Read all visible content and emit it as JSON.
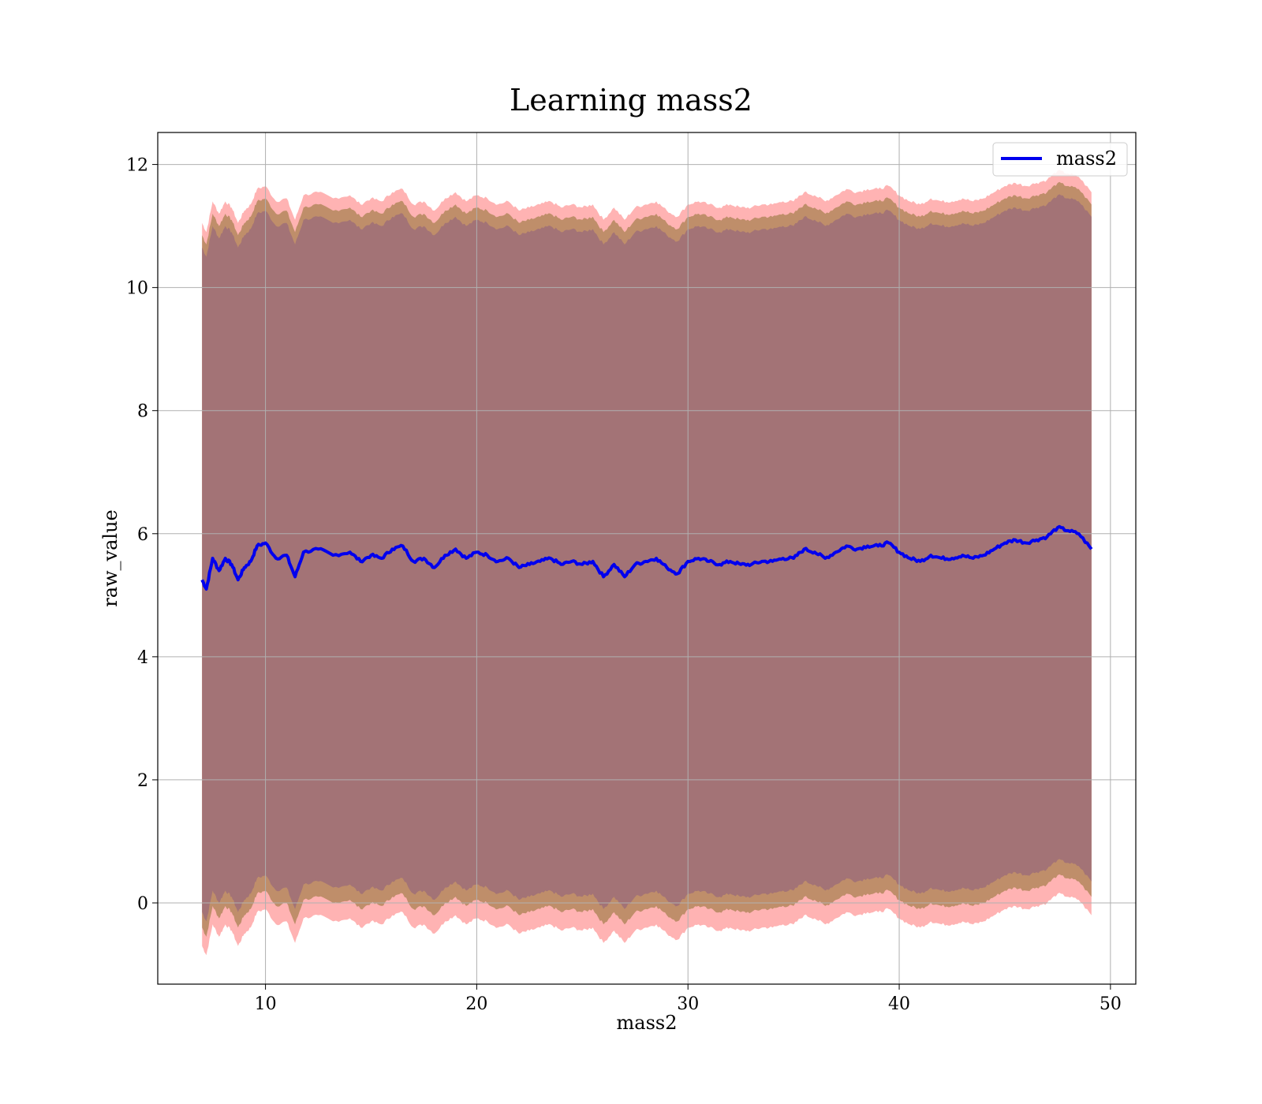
{
  "chart_data": {
    "type": "line",
    "title": "Learning mass2",
    "xlabel": "mass2",
    "ylabel": "raw_value",
    "xlim": [
      4.9,
      51.2
    ],
    "ylim": [
      -1.32,
      12.52
    ],
    "xticks": [
      10,
      20,
      30,
      40,
      50
    ],
    "yticks": [
      0,
      2,
      4,
      6,
      8,
      10,
      12
    ],
    "grid": true,
    "legend": {
      "position": "top-right",
      "entries": [
        "mass2"
      ]
    },
    "colors": {
      "line": "#0000ee",
      "outer_band": "#ff9a9a",
      "mid_band": "#b88a62",
      "inner_band": "#a07078"
    },
    "series": [
      {
        "name": "mass2",
        "x": [
          7.0,
          7.2,
          7.5,
          7.8,
          8.1,
          8.4,
          8.7,
          9.0,
          9.3,
          9.6,
          10.0,
          10.5,
          11.0,
          11.4,
          11.8,
          12.5,
          13.2,
          14.0,
          14.5,
          15.0,
          15.5,
          16.0,
          16.5,
          17.0,
          17.5,
          18.0,
          18.5,
          19.0,
          19.5,
          20.0,
          20.5,
          21.0,
          21.5,
          22.0,
          22.5,
          23.0,
          23.5,
          24.0,
          24.5,
          25.0,
          25.5,
          26.0,
          26.5,
          27.0,
          27.5,
          28.0,
          28.5,
          29.0,
          29.5,
          30.0,
          30.5,
          31.0,
          31.5,
          32.0,
          32.5,
          33.0,
          33.5,
          34.0,
          34.5,
          35.0,
          35.5,
          36.0,
          36.5,
          37.0,
          37.5,
          38.0,
          38.5,
          39.0,
          39.5,
          40.0,
          40.5,
          41.0,
          41.5,
          42.0,
          42.5,
          43.0,
          43.5,
          44.0,
          44.5,
          45.0,
          45.5,
          46.0,
          46.5,
          47.0,
          47.5,
          48.0,
          48.5,
          49.1
        ],
        "y": [
          5.25,
          5.1,
          5.6,
          5.4,
          5.6,
          5.5,
          5.25,
          5.45,
          5.55,
          5.8,
          5.85,
          5.6,
          5.65,
          5.3,
          5.7,
          5.75,
          5.65,
          5.7,
          5.55,
          5.65,
          5.6,
          5.75,
          5.8,
          5.55,
          5.6,
          5.45,
          5.65,
          5.75,
          5.6,
          5.7,
          5.65,
          5.55,
          5.6,
          5.45,
          5.5,
          5.55,
          5.6,
          5.5,
          5.55,
          5.5,
          5.55,
          5.3,
          5.5,
          5.3,
          5.5,
          5.55,
          5.6,
          5.45,
          5.35,
          5.55,
          5.6,
          5.55,
          5.5,
          5.55,
          5.5,
          5.5,
          5.55,
          5.55,
          5.6,
          5.6,
          5.75,
          5.7,
          5.6,
          5.7,
          5.8,
          5.75,
          5.8,
          5.8,
          5.85,
          5.7,
          5.6,
          5.55,
          5.65,
          5.6,
          5.6,
          5.65,
          5.6,
          5.65,
          5.75,
          5.85,
          5.9,
          5.85,
          5.9,
          5.95,
          6.1,
          6.05,
          6.0,
          5.75
        ]
      }
    ],
    "bands": [
      {
        "label": "outer",
        "offsets": [
          5.8,
          -5.95
        ]
      },
      {
        "label": "mid",
        "offsets": [
          5.6,
          -5.65
        ]
      },
      {
        "label": "inner",
        "offsets": [
          5.4,
          -5.4
        ]
      }
    ]
  }
}
